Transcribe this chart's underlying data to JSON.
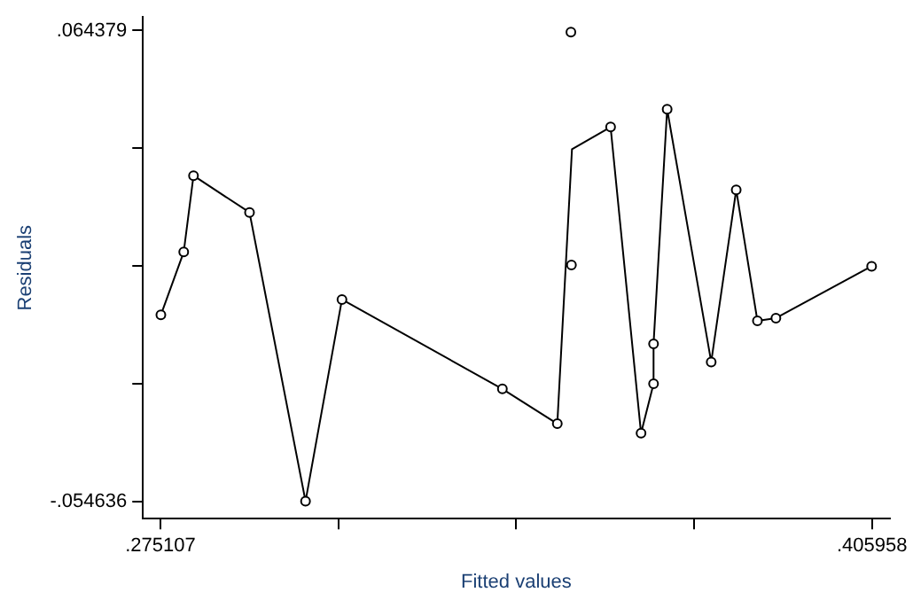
{
  "chart_data": {
    "type": "scatter",
    "xlabel": "Fitted values",
    "ylabel": "Residuals",
    "xlim": [
      0.2719,
      0.4092
    ],
    "ylim": [
      -0.059,
      0.0678
    ],
    "xticks": [
      {
        "value": 0.275107,
        "label": ".275107"
      },
      {
        "value": 0.30781975,
        "label": null
      },
      {
        "value": 0.3405325,
        "label": null
      },
      {
        "value": 0.37324525,
        "label": null
      },
      {
        "value": 0.405958,
        "label": ".405958"
      }
    ],
    "yticks": [
      {
        "value": -0.054636,
        "label": "-.054636"
      },
      {
        "value": -0.02488225,
        "label": null
      },
      {
        "value": 0.0048715,
        "label": null
      },
      {
        "value": 0.03462525,
        "label": null
      },
      {
        "value": 0.064379,
        "label": ".064379"
      }
    ],
    "grid": false,
    "series": [
      {
        "type": "scatter",
        "marker": "circle",
        "color": "#000000",
        "x": [
          0.2752,
          0.2794,
          0.2812,
          0.2915,
          0.3018,
          0.3085,
          0.338,
          0.3481,
          0.3507,
          0.3506,
          0.3579,
          0.3635,
          0.3658,
          0.3658,
          0.3683,
          0.3764,
          0.381,
          0.3849,
          0.3883,
          0.4059
        ],
        "values": [
          -0.0075,
          0.0084,
          0.0277,
          0.0184,
          -0.0546,
          -0.0036,
          -0.0262,
          -0.035,
          0.0051,
          0.064,
          0.04,
          -0.0374,
          -0.0249,
          -0.0148,
          0.0445,
          -0.0194,
          0.0241,
          -0.009,
          -0.0083,
          0.0048
        ]
      },
      {
        "type": "line",
        "marker": "none",
        "color": "#000000",
        "x": [
          0.2752,
          0.2794,
          0.2812,
          0.2915,
          0.3018,
          0.3085,
          0.338,
          0.3481,
          0.3508,
          0.3579,
          0.3635,
          0.3658,
          0.3658,
          0.3683,
          0.3764,
          0.381,
          0.3849,
          0.3883,
          0.4059
        ],
        "values": [
          -0.0075,
          0.0084,
          0.0277,
          0.0184,
          -0.0546,
          -0.0036,
          -0.0262,
          -0.035,
          0.0344,
          0.04,
          -0.0374,
          -0.0249,
          -0.0148,
          0.0445,
          -0.0194,
          0.0241,
          -0.009,
          -0.0083,
          0.0048
        ]
      }
    ]
  }
}
